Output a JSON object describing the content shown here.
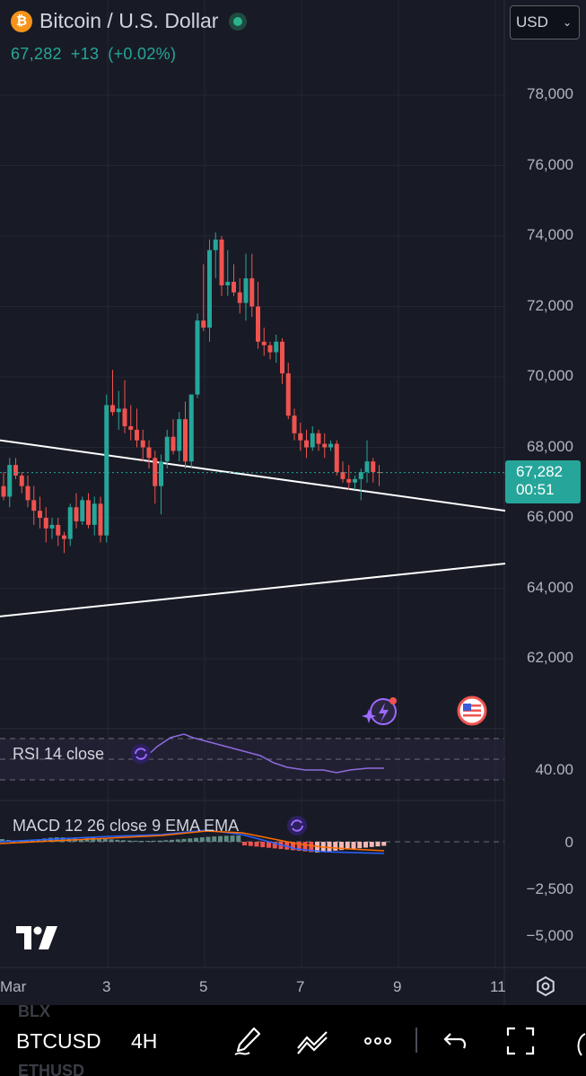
{
  "header": {
    "logo_glyph": "₿",
    "title": "Bitcoin / U.S. Dollar",
    "price": "67,282",
    "change": "+13",
    "change_pct": "(+0.02%)",
    "currency": "USD"
  },
  "price_tag": {
    "price": "67,282",
    "countdown": "00:51"
  },
  "y_axis_labels": [
    "78,000",
    "76,000",
    "74,000",
    "72,000",
    "70,000",
    "68,000",
    "66,000",
    "64,000",
    "62,000"
  ],
  "x_axis_labels": [
    "Mar",
    "3",
    "5",
    "7",
    "9",
    "11"
  ],
  "indicators": {
    "rsi": {
      "label": "RSI 14 close",
      "value_label": "40.00"
    },
    "macd": {
      "label": "MACD 12 26 close 9 EMA EMA",
      "labels": [
        "0",
        "−2,500",
        "−5,000"
      ]
    }
  },
  "toolbar": {
    "symbol": "BTCUSD",
    "timeframe": "4H",
    "ghost_above": "BLX",
    "ghost_below": "ETHUSD"
  },
  "colors": {
    "up": "#26a69a",
    "down": "#ef5350",
    "background": "#181b25"
  },
  "icons": [
    "bitcoin-icon",
    "chevron-down-icon",
    "ai-sparkle-icon",
    "us-flag-icon",
    "replay-icon",
    "settings-icon",
    "pen-icon",
    "trendline-icon",
    "more-icon",
    "undo-icon",
    "fullscreen-icon"
  ],
  "chart_data": {
    "type": "candlestick",
    "timeframe": "4H",
    "ylim": [
      60500,
      79500
    ],
    "last_price": 67282,
    "candles": [
      [
        66900,
        67300,
        66500,
        66600
      ],
      [
        66600,
        67700,
        66300,
        67500
      ],
      [
        67500,
        67700,
        67100,
        67200
      ],
      [
        67200,
        67300,
        66700,
        66900
      ],
      [
        66900,
        67200,
        66300,
        66500
      ],
      [
        66500,
        66900,
        65800,
        66200
      ],
      [
        66200,
        66600,
        65700,
        66000
      ],
      [
        66000,
        66300,
        65300,
        65700
      ],
      [
        65700,
        66000,
        65400,
        65800
      ],
      [
        65800,
        66000,
        65200,
        65500
      ],
      [
        65500,
        65600,
        65000,
        65400
      ],
      [
        65400,
        66400,
        65200,
        66300
      ],
      [
        66300,
        66700,
        65700,
        65900
      ],
      [
        65900,
        66600,
        65800,
        66500
      ],
      [
        66500,
        66700,
        65700,
        65800
      ],
      [
        65800,
        66600,
        65500,
        66400
      ],
      [
        66400,
        66600,
        65300,
        65500
      ],
      [
        65500,
        69500,
        65300,
        69200
      ],
      [
        69200,
        70200,
        68900,
        69000
      ],
      [
        69000,
        69600,
        68500,
        69100
      ],
      [
        69100,
        69900,
        68400,
        68600
      ],
      [
        68600,
        69200,
        68200,
        68500
      ],
      [
        68500,
        69100,
        68000,
        68200
      ],
      [
        68200,
        68500,
        67600,
        68000
      ],
      [
        68000,
        68200,
        67400,
        67700
      ],
      [
        67700,
        67900,
        66400,
        66900
      ],
      [
        66900,
        67800,
        66100,
        67600
      ],
      [
        67600,
        68500,
        67400,
        68300
      ],
      [
        68300,
        68800,
        67800,
        67900
      ],
      [
        67900,
        69000,
        67600,
        68800
      ],
      [
        68800,
        69300,
        67400,
        67600
      ],
      [
        67600,
        69500,
        67400,
        69500
      ],
      [
        69500,
        71800,
        69400,
        71600
      ],
      [
        71600,
        73200,
        71300,
        71400
      ],
      [
        71400,
        73900,
        71000,
        73600
      ],
      [
        73600,
        74100,
        72800,
        73900
      ],
      [
        73900,
        74000,
        72300,
        72600
      ],
      [
        72600,
        73600,
        72300,
        72700
      ],
      [
        72700,
        73200,
        72300,
        72400
      ],
      [
        72400,
        72800,
        71800,
        72100
      ],
      [
        72100,
        73500,
        71600,
        72800
      ],
      [
        72800,
        73500,
        71700,
        72000
      ],
      [
        72000,
        72700,
        70800,
        71000
      ],
      [
        71000,
        71400,
        70600,
        70900
      ],
      [
        70900,
        71000,
        70500,
        70700
      ],
      [
        70700,
        71200,
        70400,
        71000
      ],
      [
        71000,
        71100,
        69800,
        70100
      ],
      [
        70100,
        70400,
        68800,
        68900
      ],
      [
        68900,
        69100,
        68200,
        68400
      ],
      [
        68400,
        68700,
        67900,
        68200
      ],
      [
        68200,
        68500,
        67700,
        68000
      ],
      [
        68000,
        68600,
        67900,
        68400
      ],
      [
        68400,
        68500,
        67900,
        68100
      ],
      [
        68100,
        68400,
        67700,
        68000
      ],
      [
        68000,
        68200,
        67900,
        68100
      ],
      [
        68100,
        68200,
        67200,
        67300
      ],
      [
        67300,
        67600,
        67000,
        67100
      ],
      [
        67100,
        67500,
        66800,
        67000
      ],
      [
        67000,
        67200,
        66800,
        67100
      ],
      [
        67100,
        67400,
        66500,
        67300
      ],
      [
        67300,
        68200,
        67000,
        67600
      ],
      [
        67600,
        67700,
        67000,
        67300
      ],
      [
        67300,
        67500,
        66900,
        67282
      ]
    ],
    "trendlines": [
      {
        "from": [
          0,
          68200
        ],
        "to": [
          563,
          66200
        ]
      },
      {
        "from": [
          0,
          63200
        ],
        "to": [
          563,
          64700
        ]
      }
    ]
  }
}
